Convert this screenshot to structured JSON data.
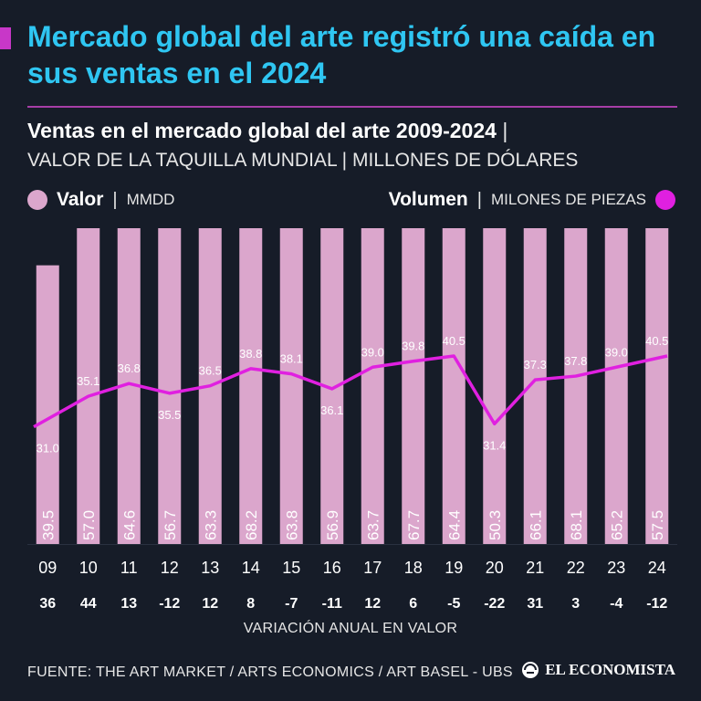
{
  "header": {
    "headline": "Mercado global del arte registró una caída en sus ventas en el 2024",
    "subtitle_bold": "Ventas en el mercado global del arte 2009-2024",
    "subtitle_sep": "|",
    "subtitle_line2": "VALOR DE LA TAQUILLA MUNDIAL | MILLONES DE DÓLARES"
  },
  "legend": {
    "value_name": "Valor",
    "value_unit": "MMDD",
    "volume_name": "Volumen",
    "volume_unit": "MILONES DE PIEZAS",
    "separator": "|"
  },
  "colors": {
    "background": "#161c28",
    "headline": "#2fc6f2",
    "bar": "#dba6cc",
    "line": "#e020e0",
    "accent": "#c837c8"
  },
  "chart_data": {
    "type": "bar",
    "title": "Ventas en el mercado global del arte 2009-2024",
    "categories": [
      "09",
      "10",
      "11",
      "12",
      "13",
      "14",
      "15",
      "16",
      "17",
      "18",
      "19",
      "20",
      "21",
      "22",
      "23",
      "24"
    ],
    "series": [
      {
        "name": "Valor",
        "unit": "MMDD",
        "type": "bar",
        "values": [
          39.5,
          57.0,
          64.6,
          56.7,
          63.3,
          68.2,
          63.8,
          56.9,
          63.7,
          67.7,
          64.4,
          50.3,
          66.1,
          68.1,
          65.2,
          57.5
        ],
        "labels": [
          "39.5",
          "57.0",
          "64.6",
          "56.7",
          "63.3",
          "68.2",
          "63.8",
          "56.9",
          "63.7",
          "67.7",
          "64.4",
          "50.3",
          "66.1",
          "68.1",
          "65.2",
          "57.5"
        ]
      },
      {
        "name": "Volumen",
        "unit": "MILONES DE PIEZAS",
        "type": "line",
        "values": [
          31.0,
          35.1,
          36.8,
          35.5,
          36.5,
          38.8,
          38.1,
          36.1,
          39.0,
          39.8,
          40.5,
          31.4,
          37.3,
          37.8,
          39.0,
          40.5
        ],
        "labels": [
          "31.0",
          "35.1",
          "36.8",
          "35.5",
          "36.5",
          "38.8",
          "38.1",
          "36.1",
          "39.0",
          "39.8",
          "40.5",
          "31.4",
          "37.3",
          "37.8",
          "39.0",
          "40.5"
        ]
      }
    ],
    "annual_change": [
      "36",
      "44",
      "13",
      "-12",
      "12",
      "8",
      "-7",
      "-11",
      "12",
      "6",
      "-5",
      "-22",
      "31",
      "3",
      "-4",
      "-12"
    ],
    "annual_change_label": "VARIACIÓN ANUAL EN VALOR",
    "bar_ylim": [
      0,
      70
    ],
    "line_ylim": [
      20,
      50
    ]
  },
  "footer": {
    "source": "FUENTE: THE ART MARKET / ARTS ECONOMICS / ART BASEL - UBS",
    "logo": "EL ECONOMISTA"
  }
}
